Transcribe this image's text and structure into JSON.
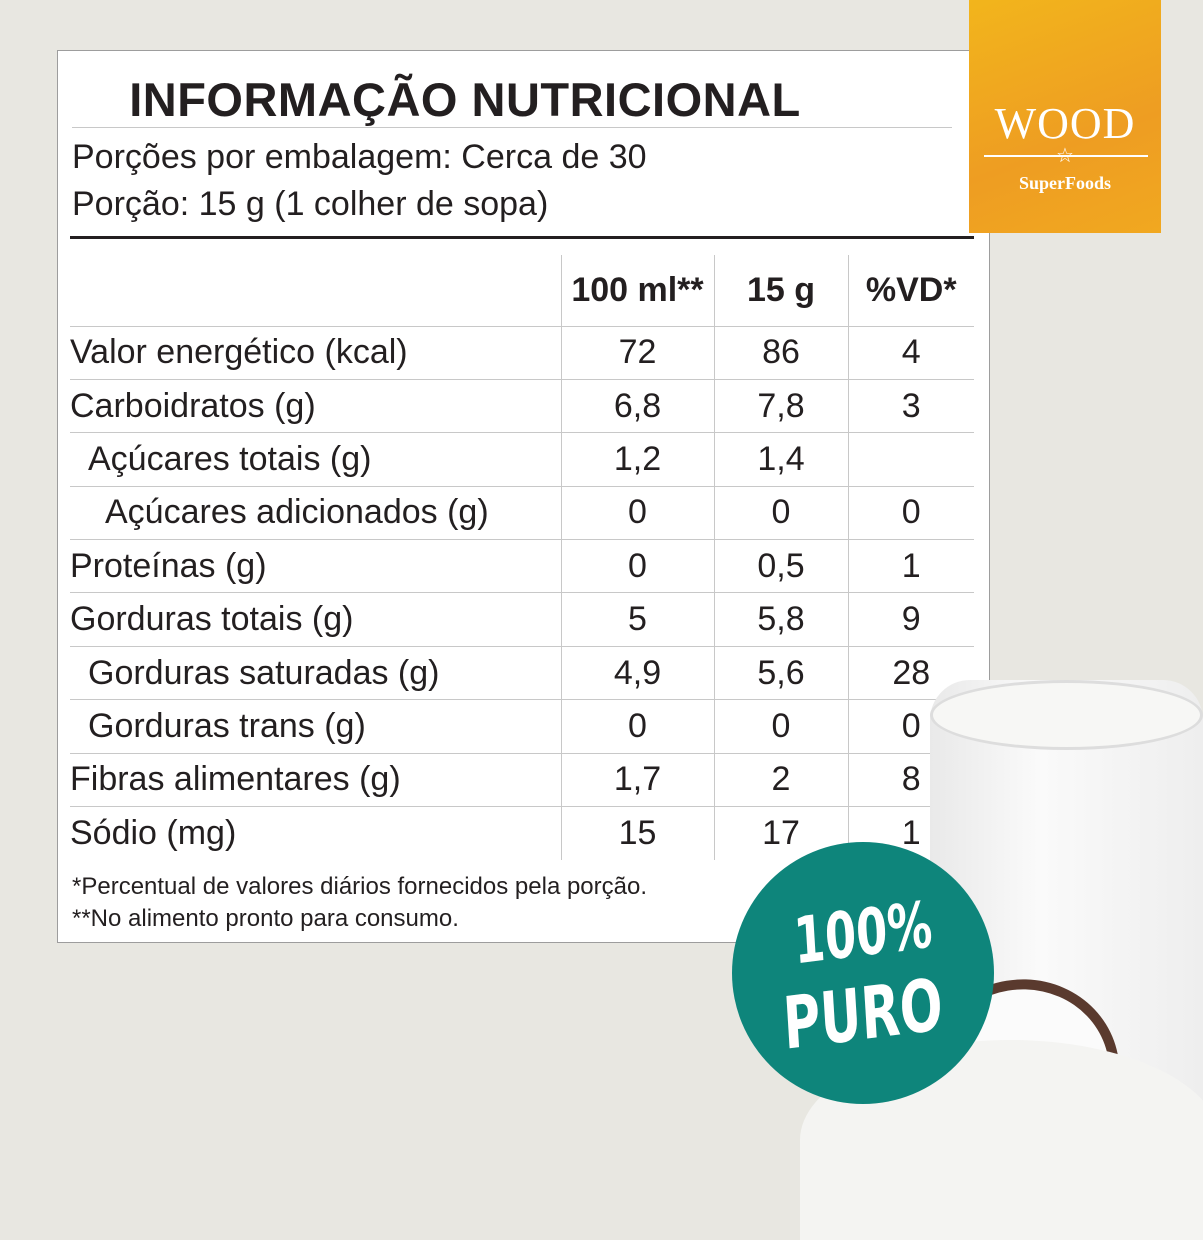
{
  "title": "INFORMAÇÃO NUTRICIONAL",
  "servings_per_package": "Porções por embalagem: Cerca de 30",
  "serving_size": "Porção: 15 g (1 colher de sopa)",
  "headers": [
    "",
    "100 ml**",
    "15 g",
    "%VD*"
  ],
  "rows": [
    [
      "Valor energético (kcal)",
      "72",
      "86",
      "4"
    ],
    [
      "Carboidratos (g)",
      "6,8",
      "7,8",
      "3"
    ],
    [
      "Açúcares totais (g)",
      "1,2",
      "1,4",
      ""
    ],
    [
      "Açúcares adicionados (g)",
      "0",
      "0",
      "0"
    ],
    [
      "Proteínas (g)",
      "0",
      "0,5",
      "1"
    ],
    [
      "Gorduras totais (g)",
      "5",
      "5,8",
      "9"
    ],
    [
      "Gorduras saturadas (g)",
      "4,9",
      "5,6",
      "28"
    ],
    [
      "Gorduras trans (g)",
      "0",
      "0",
      "0"
    ],
    [
      "Fibras alimentares (g)",
      "1,7",
      "2",
      "8"
    ],
    [
      "Sódio (mg)",
      "15",
      "17",
      "1"
    ]
  ],
  "footnotes": [
    "*Percentual de valores diários fornecidos pela porção.",
    "**No alimento pronto para consumo."
  ],
  "logo": {
    "name": "WOOD",
    "tagline": "SuperFoods",
    "bg": "#f0a31f"
  },
  "badge": {
    "line1": "100%",
    "line2": "PURO",
    "color": "#0e857b"
  }
}
